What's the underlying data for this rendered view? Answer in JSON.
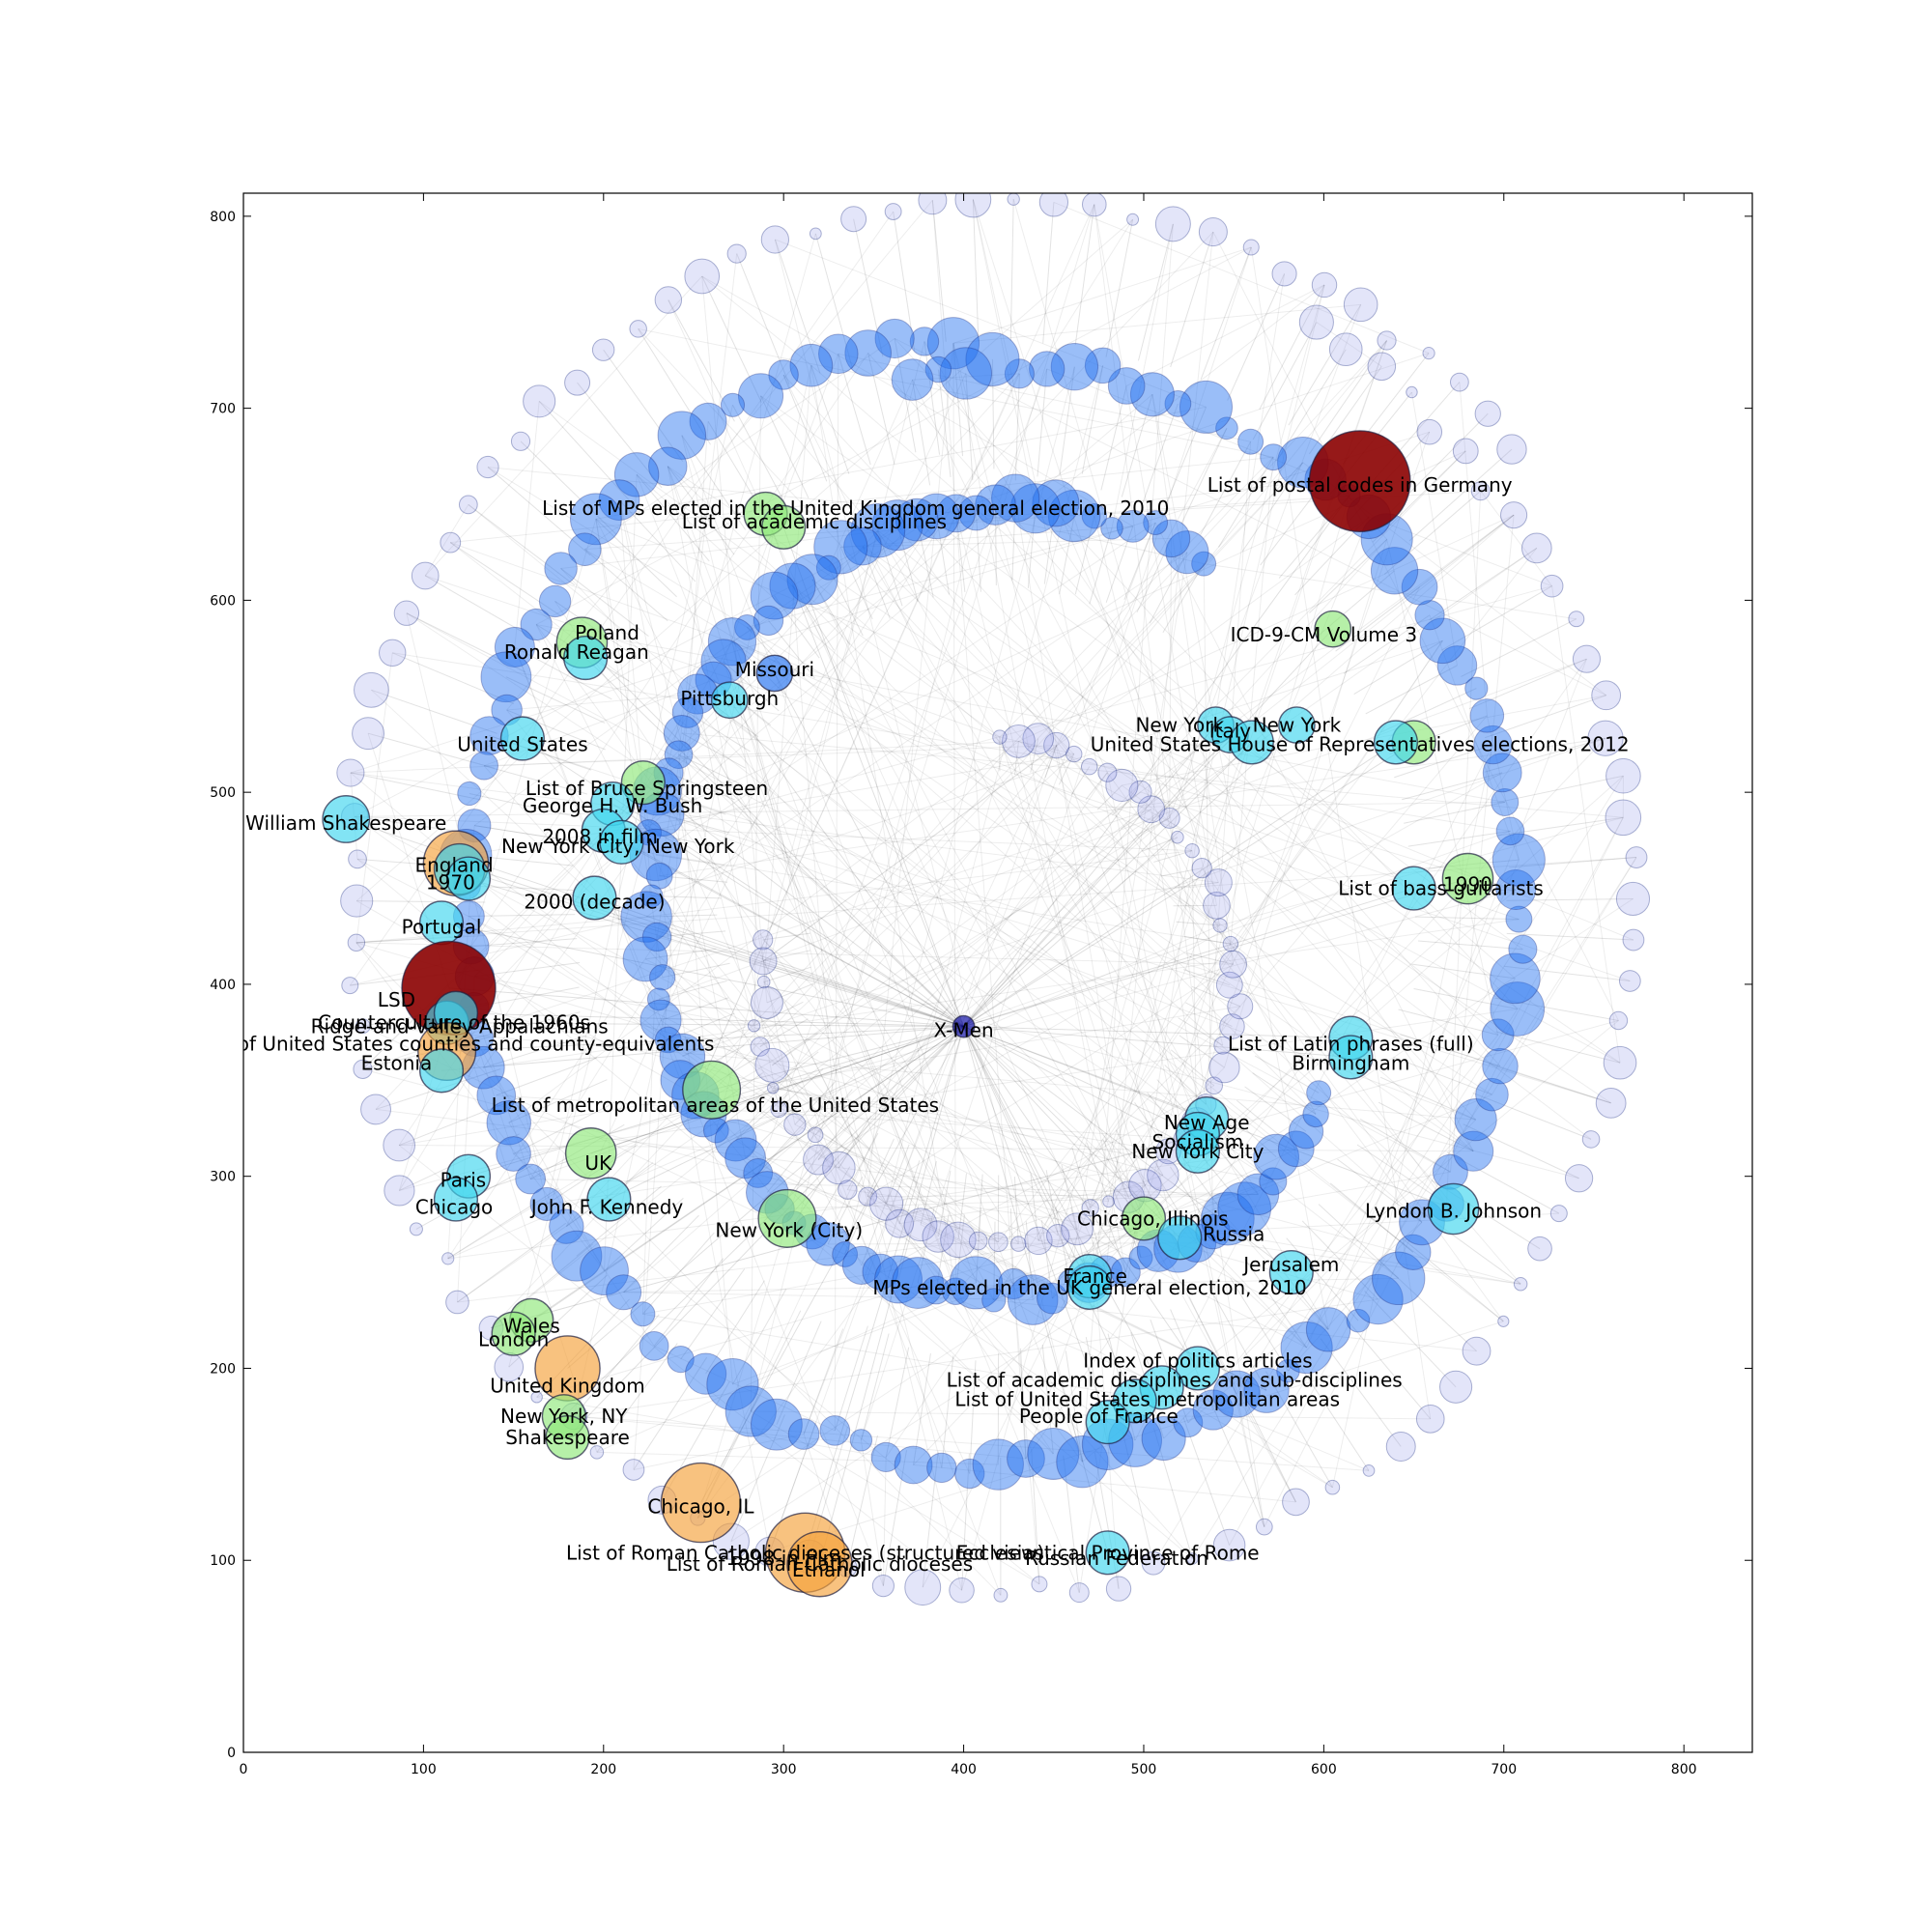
{
  "chart_data": {
    "type": "scatter",
    "title": "",
    "xlabel": "",
    "ylabel": "",
    "xlim": [
      0,
      838
    ],
    "ylim": [
      0,
      812
    ],
    "xticks": [
      0,
      100,
      200,
      300,
      400,
      500,
      600,
      700,
      800
    ],
    "yticks": [
      0,
      100,
      200,
      300,
      400,
      500,
      600,
      700,
      800
    ],
    "colors": {
      "edge_light": "#c8c8c8",
      "edge_dark": "#000000",
      "node_blue": "#1e6ff0",
      "node_cyan": "#3fd6ee",
      "node_faint": "#8f97e8",
      "node_green": "#8fe87a",
      "node_orange": "#f5a23a",
      "node_red": "#8b0000",
      "node_center": "#0000a0"
    },
    "spiral_arms": [
      {
        "name": "arm-outer-ring",
        "cx": 420,
        "cy": 440,
        "r": 300,
        "from_deg": 95,
        "to_deg": 460,
        "dots": 120,
        "color": "node_blue"
      },
      {
        "name": "arm-middle-ring",
        "cx": 430,
        "cy": 440,
        "r": 210,
        "from_deg": 60,
        "to_deg": 330,
        "dots": 90,
        "color": "node_blue"
      },
      {
        "name": "arm-inner-ring",
        "cx": 420,
        "cy": 400,
        "r": 135,
        "from_deg": 170,
        "to_deg": 450,
        "dots": 60,
        "color": "node_faint"
      },
      {
        "name": "arm-outermost-faint",
        "cx": 420,
        "cy": 440,
        "r": 370,
        "from_deg": 40,
        "to_deg": 420,
        "dots": 110,
        "color": "node_faint"
      }
    ],
    "labeled_nodes": [
      {
        "label": "X-Men",
        "x": 400,
        "y": 378,
        "size": 6,
        "color": "node_center"
      },
      {
        "label": "List of postal codes in Germany",
        "x": 620,
        "y": 662,
        "size": 28,
        "color": "node_red"
      },
      {
        "label": "List of MPs elected in the United Kingdom general election, 2010",
        "x": 290,
        "y": 645,
        "size": 12,
        "color": "node_green"
      },
      {
        "label": "List of academic disciplines",
        "x": 300,
        "y": 638,
        "size": 12,
        "color": "node_green"
      },
      {
        "label": "ICD-9-CM Volume 3",
        "x": 605,
        "y": 585,
        "size": 10,
        "color": "node_green"
      },
      {
        "label": "Poland",
        "x": 188,
        "y": 578,
        "size": 14,
        "color": "node_green"
      },
      {
        "label": "Ronald Reagan",
        "x": 190,
        "y": 570,
        "size": 12,
        "color": "node_cyan"
      },
      {
        "label": "Missouri",
        "x": 295,
        "y": 562,
        "size": 10,
        "color": "node_blue"
      },
      {
        "label": "Pittsburgh",
        "x": 270,
        "y": 548,
        "size": 10,
        "color": "node_cyan"
      },
      {
        "label": "New York",
        "x": 540,
        "y": 535,
        "size": 10,
        "color": "node_cyan"
      },
      {
        "label": "Italy",
        "x": 548,
        "y": 530,
        "size": 10,
        "color": "node_cyan"
      },
      {
        "label": "New York",
        "x": 585,
        "y": 535,
        "size": 10,
        "color": "node_cyan"
      },
      {
        "label": "United States House of Representatives elections, 2012",
        "x": 650,
        "y": 526,
        "size": 12,
        "color": "node_green"
      },
      {
        "label": "United States",
        "x": 560,
        "y": 526,
        "size": 12,
        "color": "node_cyan"
      },
      {
        "label": "List of Bruce Springsteen",
        "x": 640,
        "y": 526,
        "size": 12,
        "color": "node_cyan"
      },
      {
        "label": "George H. W. Bush",
        "x": 155,
        "y": 528,
        "size": 12,
        "color": "node_cyan"
      },
      {
        "label": "2008 in film",
        "x": 222,
        "y": 505,
        "size": 12,
        "color": "node_green"
      },
      {
        "label": "New York City, New York",
        "x": 205,
        "y": 494,
        "size": 12,
        "color": "node_cyan"
      },
      {
        "label": "William Shakespeare",
        "x": 200,
        "y": 480,
        "size": 12,
        "color": "node_cyan"
      },
      {
        "label": "England",
        "x": 210,
        "y": 474,
        "size": 12,
        "color": "node_cyan"
      },
      {
        "label": "1970",
        "x": 57,
        "y": 486,
        "size": 13,
        "color": "node_cyan"
      },
      {
        "label": "2000 (decade)",
        "x": 118,
        "y": 463,
        "size": 18,
        "color": "node_orange"
      },
      {
        "label": "1990",
        "x": 120,
        "y": 460,
        "size": 14,
        "color": "node_cyan"
      },
      {
        "label": "List of bass guitarists",
        "x": 125,
        "y": 455,
        "size": 12,
        "color": "node_cyan"
      },
      {
        "label": "Portugal",
        "x": 195,
        "y": 445,
        "size": 12,
        "color": "node_cyan"
      },
      {
        "label": "LSD",
        "x": 680,
        "y": 455,
        "size": 14,
        "color": "node_green"
      },
      {
        "label": "Counterculture of the 1960s",
        "x": 650,
        "y": 450,
        "size": 12,
        "color": "node_cyan"
      },
      {
        "label": "Ridge-and-valley Appalachians",
        "x": 110,
        "y": 432,
        "size": 12,
        "color": "node_cyan"
      },
      {
        "label": "List of United States counties and county-equivalents",
        "x": 114,
        "y": 398,
        "size": 26,
        "color": "node_red"
      },
      {
        "label": "Estonia",
        "x": 113,
        "y": 380,
        "size": 12,
        "color": "node_cyan"
      },
      {
        "label": "List of Latin phrases (full)",
        "x": 118,
        "y": 385,
        "size": 12,
        "color": "node_cyan"
      },
      {
        "label": "Birmingham",
        "x": 113,
        "y": 365,
        "size": 16,
        "color": "node_orange"
      },
      {
        "label": "List of metropolitan areas of the United States",
        "x": 110,
        "y": 355,
        "size": 12,
        "color": "node_cyan"
      },
      {
        "label": "New Age",
        "x": 615,
        "y": 372,
        "size": 12,
        "color": "node_cyan"
      },
      {
        "label": "Socialism",
        "x": 615,
        "y": 362,
        "size": 12,
        "color": "node_cyan"
      },
      {
        "label": "New York City",
        "x": 260,
        "y": 345,
        "size": 16,
        "color": "node_green"
      },
      {
        "label": "UK",
        "x": 535,
        "y": 330,
        "size": 12,
        "color": "node_cyan"
      },
      {
        "label": "Paris",
        "x": 530,
        "y": 322,
        "size": 12,
        "color": "node_cyan"
      },
      {
        "label": "Chicago",
        "x": 530,
        "y": 313,
        "size": 12,
        "color": "node_cyan"
      },
      {
        "label": "John F. Kennedy",
        "x": 193,
        "y": 312,
        "size": 14,
        "color": "node_green"
      },
      {
        "label": "New York (City)",
        "x": 125,
        "y": 300,
        "size": 12,
        "color": "node_cyan"
      },
      {
        "label": "Lyndon B. Johnson",
        "x": 118,
        "y": 288,
        "size": 12,
        "color": "node_cyan"
      },
      {
        "label": "Chicago, Illinois",
        "x": 203,
        "y": 288,
        "size": 12,
        "color": "node_cyan"
      },
      {
        "label": "Russia",
        "x": 302,
        "y": 278,
        "size": 16,
        "color": "node_green"
      },
      {
        "label": "Jerusalem",
        "x": 672,
        "y": 283,
        "size": 14,
        "color": "node_cyan"
      },
      {
        "label": "France",
        "x": 500,
        "y": 278,
        "size": 12,
        "color": "node_green"
      },
      {
        "label": "MPs elected in the UK general election, 2010",
        "x": 520,
        "y": 268,
        "size": 12,
        "color": "node_cyan"
      },
      {
        "label": "Wales",
        "x": 582,
        "y": 250,
        "size": 12,
        "color": "node_cyan"
      },
      {
        "label": "London",
        "x": 470,
        "y": 248,
        "size": 12,
        "color": "node_cyan"
      },
      {
        "label": "United Kingdom",
        "x": 470,
        "y": 242,
        "size": 12,
        "color": "node_cyan"
      },
      {
        "label": "Index of politics articles",
        "x": 160,
        "y": 225,
        "size": 12,
        "color": "node_green"
      },
      {
        "label": "List of academic disciplines and sub-disciplines",
        "x": 150,
        "y": 218,
        "size": 12,
        "color": "node_green"
      },
      {
        "label": "List of United States metropolitan areas",
        "x": 180,
        "y": 200,
        "size": 18,
        "color": "node_orange"
      },
      {
        "label": "New York, NY",
        "x": 530,
        "y": 200,
        "size": 12,
        "color": "node_cyan"
      },
      {
        "label": "People of France",
        "x": 510,
        "y": 190,
        "size": 12,
        "color": "node_cyan"
      },
      {
        "label": "Shakespeare",
        "x": 495,
        "y": 183,
        "size": 12,
        "color": "node_cyan"
      },
      {
        "label": "Chicago, IL",
        "x": 178,
        "y": 175,
        "size": 12,
        "color": "node_green"
      },
      {
        "label": "1998 in film",
        "x": 480,
        "y": 172,
        "size": 12,
        "color": "node_cyan"
      },
      {
        "label": "Russian Federation",
        "x": 180,
        "y": 164,
        "size": 12,
        "color": "node_green"
      },
      {
        "label": "Ethanol",
        "x": 254,
        "y": 130,
        "size": 22,
        "color": "node_orange"
      },
      {
        "label": "List of Roman Catholic dioceses (structured view)",
        "x": 312,
        "y": 104,
        "size": 22,
        "color": "node_orange"
      },
      {
        "label": "Ecclesiastical Province of Rome",
        "x": 480,
        "y": 104,
        "size": 12,
        "color": "node_cyan"
      },
      {
        "label": "List of Roman Catholic dioceses",
        "x": 320,
        "y": 98,
        "size": 18,
        "color": "node_orange"
      }
    ],
    "label_offsets": {
      "List of postal codes in Germany": [
        0,
        0
      ],
      "List of MPs elected in the United Kingdom general election, 2010": [
        65,
        0
      ],
      "List of academic disciplines": [
        30,
        0
      ],
      "ICD-9-CM Volume 3": [
        0,
        0
      ],
      "United States House of Representatives elections, 2012": [
        80,
        0
      ],
      "List of Bruce Springsteen": [
        0,
        0
      ]
    },
    "label_positions": [
      [
        "X-Men",
        400,
        376
      ],
      [
        "List of postal codes in Germany",
        620,
        660
      ],
      [
        "List of MPs elected in the United Kingdom general election, 2010",
        340,
        648
      ],
      [
        "List of academic disciplines",
        317,
        641
      ],
      [
        "ICD-9-CM Volume 3",
        600,
        582
      ],
      [
        "Poland",
        202,
        583
      ],
      [
        "Ronald Reagan",
        185,
        573
      ],
      [
        "Missouri",
        295,
        564
      ],
      [
        "Pittsburgh",
        270,
        549
      ],
      [
        "New York",
        520,
        535
      ],
      [
        "Italy",
        548,
        532
      ],
      [
        "New York",
        585,
        535
      ],
      [
        "United States House of Representatives elections, 2012",
        620,
        525
      ],
      [
        "George H. W. Bush",
        155,
        525
      ],
      [
        "2008 in film",
        224,
        502
      ],
      [
        "New York City, New York",
        205,
        493
      ],
      [
        "William Shakespeare",
        198,
        477
      ],
      [
        "England",
        208,
        472
      ],
      [
        "1970",
        57,
        484
      ],
      [
        "2000 (decade)",
        117,
        462
      ],
      [
        "List of bass guitarists",
        115,
        453
      ],
      [
        "Portugal",
        195,
        443
      ],
      [
        "LSD",
        680,
        452
      ],
      [
        "Counterculture of the 1960s",
        665,
        450
      ],
      [
        "Ridge-and-valley Appalachians",
        110,
        430
      ],
      [
        "List of United States counties and county-equivalents",
        85,
        392
      ],
      [
        "Estonia",
        117,
        380
      ],
      [
        "List of Latin phrases (full)",
        120,
        378
      ],
      [
        "Birmingham",
        118,
        369
      ],
      [
        "List of metropolitan areas of the United States",
        85,
        359
      ],
      [
        "New Age",
        615,
        369
      ],
      [
        "Socialism",
        615,
        359
      ],
      [
        "New York City",
        262,
        337
      ],
      [
        "UK",
        535,
        328
      ],
      [
        "Paris",
        530,
        318
      ],
      [
        "Chicago",
        530,
        313
      ],
      [
        "John F. Kennedy",
        197,
        307
      ],
      [
        "New York (City)",
        122,
        298
      ],
      [
        "Lyndon B. Johnson",
        117,
        284
      ],
      [
        "Chicago, Illinois",
        202,
        284
      ],
      [
        "Russia",
        303,
        272
      ],
      [
        "Jerusalem",
        672,
        282
      ],
      [
        "France",
        505,
        278
      ],
      [
        "MPs elected in the UK general election, 2010",
        550,
        270
      ],
      [
        "Wales",
        582,
        254
      ],
      [
        "London",
        473,
        248
      ],
      [
        "United Kingdom",
        470,
        242
      ],
      [
        "Index of politics articles",
        160,
        222
      ],
      [
        "List of academic disciplines and sub-disciplines",
        150,
        215
      ],
      [
        "List of United States metropolitan areas",
        180,
        191
      ],
      [
        "New York, NY",
        530,
        204
      ],
      [
        "People of France",
        517,
        194
      ],
      [
        "Shakespeare",
        502,
        184
      ],
      [
        "Chicago, IL",
        178,
        175
      ],
      [
        "1998 in film",
        475,
        175
      ],
      [
        "Russian Federation",
        180,
        164
      ],
      [
        "Ethanol",
        254,
        128
      ],
      [
        "List of Roman Catholic dioceses (structured view)",
        300,
        101
      ],
      [
        "Ecclesiastical Province of Rome",
        485,
        101
      ],
      [
        "List of Roman Catholic dioceses",
        325,
        95
      ]
    ]
  }
}
